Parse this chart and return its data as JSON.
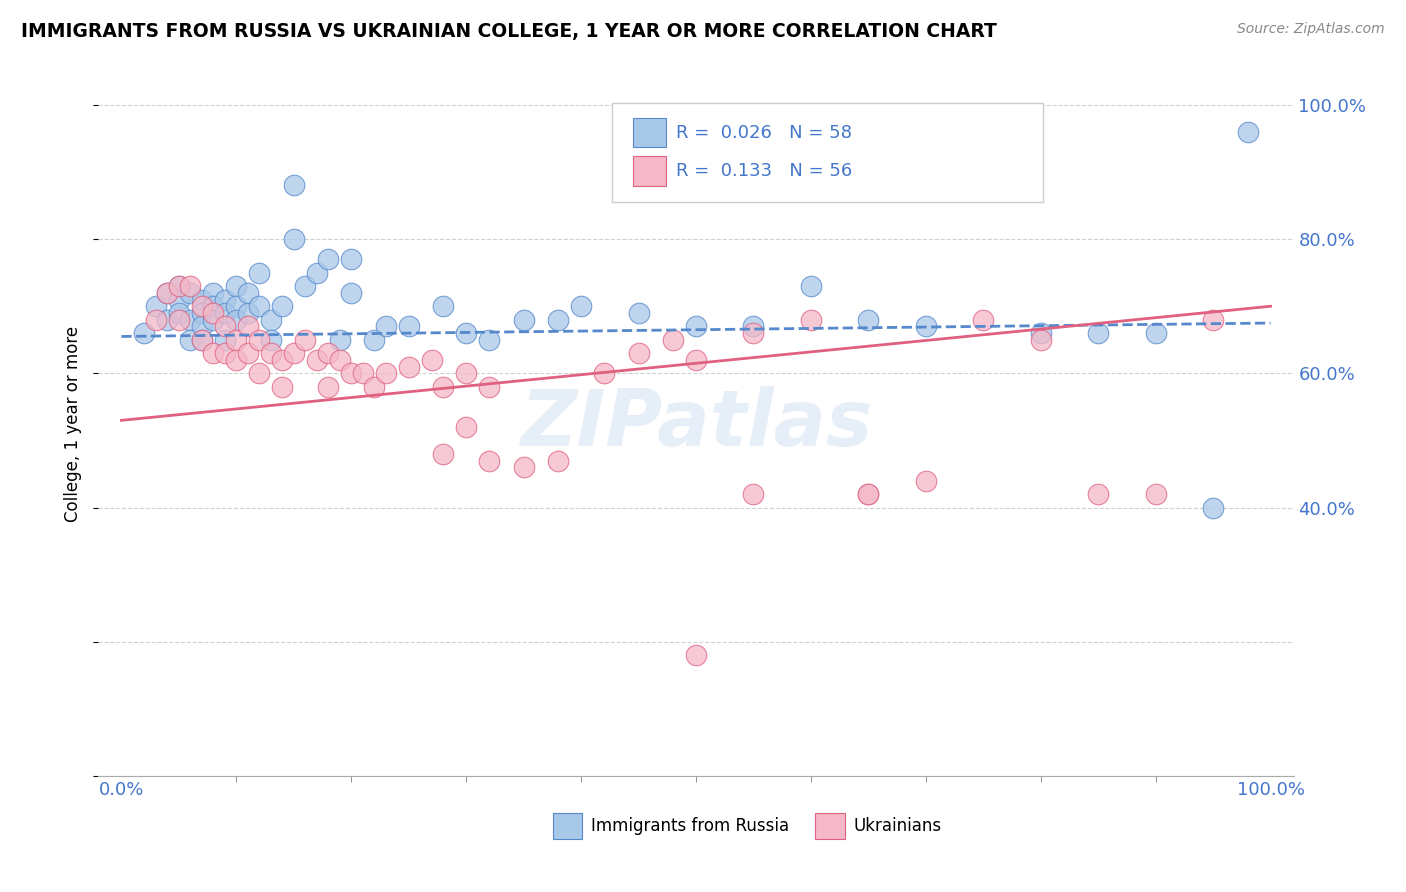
{
  "title": "IMMIGRANTS FROM RUSSIA VS UKRAINIAN COLLEGE, 1 YEAR OR MORE CORRELATION CHART",
  "source": "Source: ZipAtlas.com",
  "ylabel": "College, 1 year or more",
  "color_blue": "#a8c8e8",
  "color_pink": "#f4b8c8",
  "line_color_blue": "#5588cc",
  "line_color_pink": "#e06080",
  "legend1_label": "R =  0.026   N = 58",
  "legend2_label": "R =  0.133   N = 56",
  "russia_x": [
    0.02,
    0.03,
    0.04,
    0.04,
    0.05,
    0.05,
    0.05,
    0.06,
    0.06,
    0.06,
    0.07,
    0.07,
    0.07,
    0.07,
    0.08,
    0.08,
    0.08,
    0.09,
    0.09,
    0.09,
    0.1,
    0.1,
    0.1,
    0.11,
    0.11,
    0.12,
    0.12,
    0.13,
    0.13,
    0.14,
    0.15,
    0.15,
    0.16,
    0.17,
    0.18,
    0.19,
    0.2,
    0.2,
    0.22,
    0.23,
    0.25,
    0.28,
    0.3,
    0.32,
    0.35,
    0.38,
    0.4,
    0.45,
    0.5,
    0.55,
    0.6,
    0.65,
    0.7,
    0.8,
    0.85,
    0.9,
    0.95,
    0.98
  ],
  "russia_y": [
    0.66,
    0.7,
    0.72,
    0.68,
    0.73,
    0.71,
    0.69,
    0.72,
    0.68,
    0.65,
    0.71,
    0.69,
    0.67,
    0.65,
    0.72,
    0.7,
    0.68,
    0.71,
    0.69,
    0.65,
    0.73,
    0.7,
    0.68,
    0.72,
    0.69,
    0.75,
    0.7,
    0.68,
    0.65,
    0.7,
    0.88,
    0.8,
    0.73,
    0.75,
    0.77,
    0.65,
    0.72,
    0.77,
    0.65,
    0.67,
    0.67,
    0.7,
    0.66,
    0.65,
    0.68,
    0.68,
    0.7,
    0.69,
    0.67,
    0.67,
    0.73,
    0.68,
    0.67,
    0.66,
    0.66,
    0.66,
    0.4,
    0.96
  ],
  "ukraine_x": [
    0.03,
    0.04,
    0.05,
    0.05,
    0.06,
    0.07,
    0.07,
    0.08,
    0.08,
    0.09,
    0.09,
    0.1,
    0.1,
    0.11,
    0.11,
    0.12,
    0.12,
    0.13,
    0.14,
    0.14,
    0.15,
    0.16,
    0.17,
    0.18,
    0.18,
    0.19,
    0.2,
    0.21,
    0.22,
    0.23,
    0.25,
    0.27,
    0.28,
    0.3,
    0.32,
    0.35,
    0.38,
    0.42,
    0.45,
    0.48,
    0.5,
    0.55,
    0.6,
    0.65,
    0.7,
    0.75,
    0.8,
    0.85,
    0.9,
    0.95,
    0.5,
    0.28,
    0.3,
    0.32,
    0.55,
    0.65
  ],
  "ukraine_y": [
    0.68,
    0.72,
    0.73,
    0.68,
    0.73,
    0.7,
    0.65,
    0.69,
    0.63,
    0.67,
    0.63,
    0.65,
    0.62,
    0.67,
    0.63,
    0.65,
    0.6,
    0.63,
    0.62,
    0.58,
    0.63,
    0.65,
    0.62,
    0.63,
    0.58,
    0.62,
    0.6,
    0.6,
    0.58,
    0.6,
    0.61,
    0.62,
    0.58,
    0.6,
    0.58,
    0.46,
    0.47,
    0.6,
    0.63,
    0.65,
    0.18,
    0.66,
    0.68,
    0.42,
    0.44,
    0.68,
    0.65,
    0.42,
    0.42,
    0.68,
    0.62,
    0.48,
    0.52,
    0.47,
    0.42,
    0.42
  ],
  "russia_line": [
    0.655,
    0.675
  ],
  "ukraine_line": [
    0.53,
    0.7
  ],
  "xlim": [
    -0.02,
    1.02
  ],
  "ylim": [
    0.0,
    1.05
  ],
  "yticks": [
    0.4,
    0.6,
    0.8,
    1.0
  ],
  "ytick_labels": [
    "40.0%",
    "60.0%",
    "80.0%",
    "100.0%"
  ],
  "xtick_labels": [
    "0.0%",
    "100.0%"
  ]
}
